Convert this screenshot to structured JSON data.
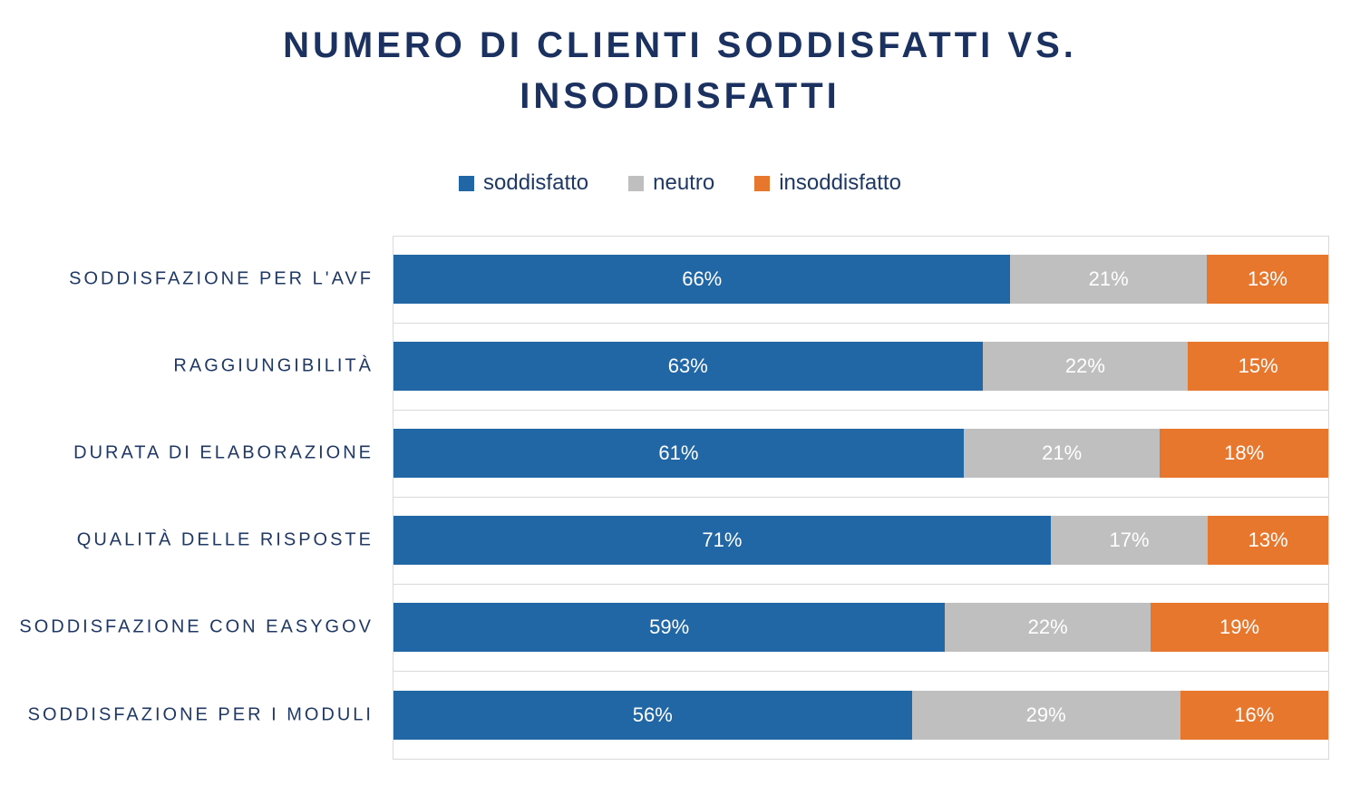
{
  "colors": {
    "navy_title": "#1B3160",
    "navy_text": "#1F3864",
    "blue": "#2267A5",
    "gray": "#BFBFBF",
    "orange": "#E8772E",
    "grid": "#D9D9D9",
    "bar_label": "#FFFFFF"
  },
  "chart_data": {
    "type": "bar",
    "orientation": "horizontal",
    "stacked": "100%",
    "title": "NUMERO DI CLIENTI SODDISFATTI VS. INSODDISFATTI",
    "legend_position": "top",
    "grid": "category-boundaries",
    "value_suffix": "%",
    "categories": [
      "SODDISFAZIONE PER L'AVF",
      "RAGGIUNGIBILITÀ",
      "DURATA DI ELABORAZIONE",
      "QUALITÀ DELLE RISPOSTE",
      "SODDISFAZIONE CON EASYGOV",
      "SODDISFAZIONE PER I MODULI"
    ],
    "series": [
      {
        "name": "soddisfatto",
        "color": "#2267A5",
        "values": [
          66,
          63,
          61,
          71,
          59,
          56
        ]
      },
      {
        "name": "neutro",
        "color": "#BFBFBF",
        "values": [
          21,
          22,
          21,
          17,
          22,
          29
        ]
      },
      {
        "name": "insoddisfatto",
        "color": "#E8772E",
        "values": [
          13,
          15,
          18,
          13,
          19,
          16
        ]
      }
    ]
  }
}
